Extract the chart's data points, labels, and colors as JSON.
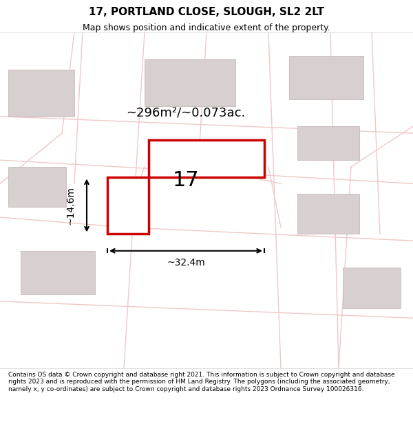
{
  "title": "17, PORTLAND CLOSE, SLOUGH, SL2 2LT",
  "subtitle": "Map shows position and indicative extent of the property.",
  "footer": "Contains OS data © Crown copyright and database right 2021. This information is subject to Crown copyright and database rights 2023 and is reproduced with the permission of HM Land Registry. The polygons (including the associated geometry, namely x, y co-ordinates) are subject to Crown copyright and database rights 2023 Ordnance Survey 100026316.",
  "area_label": "~296m²/~0.073ac.",
  "number_label": "17",
  "width_label": "~32.4m",
  "height_label": "~14.6m",
  "bg_color": "#f5f0f0",
  "map_bg": "#f8f4f4",
  "plot_color_fill": "#e8e0e0",
  "plot_color_edge": "#cc0000",
  "building_fill": "#d0c8c8",
  "road_color": "#f0c8c8",
  "neighbor_fill": "#d8d0d0",
  "neighbor_edge": "#c0b0b0"
}
